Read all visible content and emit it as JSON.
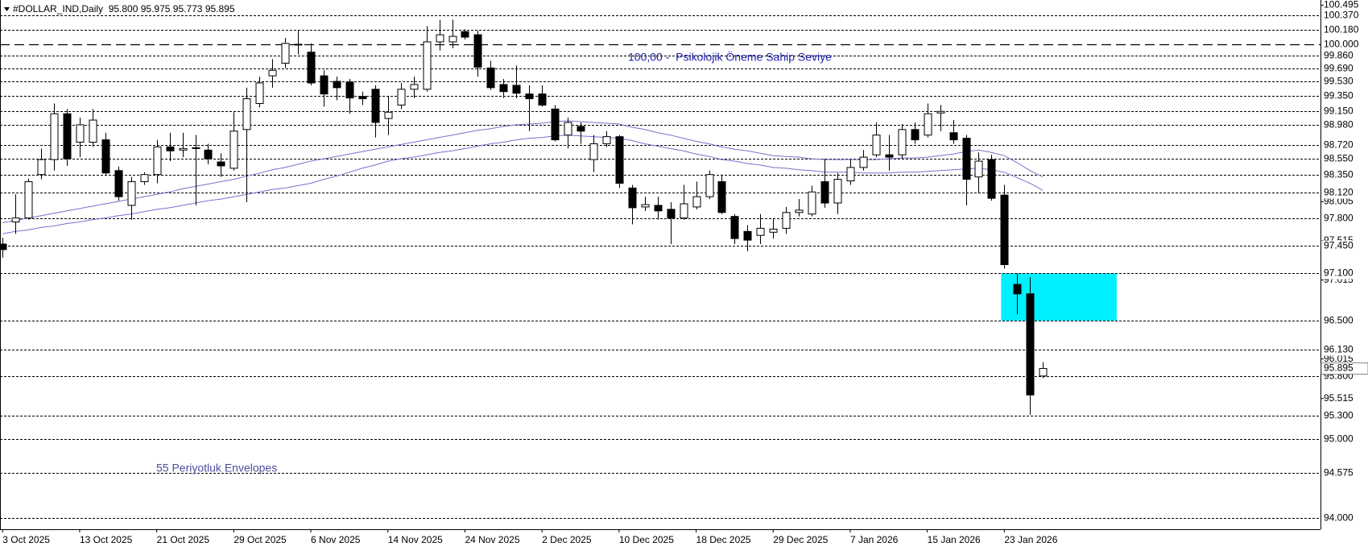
{
  "chart_data": {
    "type": "candlestick",
    "header": "#DOLLAR_IND,Daily  95.800 95.975 95.773 95.895",
    "annotations": [
      "100,00 -  Psikolojik Öneme Sahip Seviye",
      "55 Periyotluk Envelopes"
    ],
    "categories": [
      "3 Oct 2025",
      null,
      null,
      null,
      null,
      null,
      "13 Oct 2025",
      null,
      null,
      null,
      null,
      null,
      "21 Oct 2025",
      null,
      null,
      null,
      null,
      null,
      "29 Oct 2025",
      null,
      null,
      null,
      null,
      null,
      "6 Nov 2025",
      null,
      null,
      null,
      null,
      null,
      "14 Nov 2025",
      null,
      null,
      null,
      null,
      null,
      "24 Nov 2025",
      null,
      null,
      null,
      null,
      null,
      "2 Dec 2025",
      null,
      null,
      null,
      null,
      null,
      "10 Dec 2025",
      null,
      null,
      null,
      null,
      null,
      "18 Dec 2025",
      null,
      null,
      null,
      null,
      null,
      "29 Dec 2025",
      null,
      null,
      null,
      null,
      null,
      "7 Jan 2026",
      null,
      null,
      null,
      null,
      null,
      "15 Jan 2026",
      null,
      null,
      null,
      null,
      null,
      "23 Jan 2026",
      null,
      null,
      null
    ],
    "open": [
      97.47,
      97.75,
      97.8,
      98.35,
      98.54,
      99.12,
      98.76,
      98.76,
      98.79,
      98.4,
      97.96,
      98.26,
      98.35,
      98.7,
      98.66,
      98.68,
      98.66,
      98.51,
      98.43,
      98.92,
      99.25,
      99.6,
      99.76,
      100.0,
      99.9,
      99.6,
      99.53,
      99.52,
      99.34,
      99.43,
      99.06,
      99.23,
      99.43,
      99.43,
      100.03,
      100.03,
      100.16,
      100.12,
      99.7,
      99.49,
      99.48,
      99.37,
      99.37,
      99.18,
      98.85,
      98.96,
      98.54,
      98.74,
      98.83,
      98.18,
      97.94,
      97.96,
      97.91,
      97.8,
      97.94,
      98.07,
      98.26,
      97.82,
      97.63,
      97.58,
      97.62,
      97.67,
      97.87,
      97.85,
      98.26,
      97.99,
      98.27,
      98.44,
      98.6,
      98.6,
      98.6,
      98.92,
      98.85,
      99.13,
      98.88,
      98.81,
      98.32,
      98.54,
      98.09,
      96.96,
      96.84,
      95.8
    ],
    "high": [
      97.55,
      98.1,
      98.3,
      98.68,
      99.25,
      99.18,
      99.07,
      99.18,
      98.88,
      98.45,
      98.32,
      98.38,
      98.79,
      98.88,
      98.88,
      98.85,
      98.74,
      98.62,
      99.14,
      99.45,
      99.59,
      99.81,
      100.08,
      100.17,
      100.01,
      99.67,
      99.59,
      99.56,
      99.4,
      99.48,
      99.34,
      99.51,
      99.59,
      100.23,
      100.31,
      100.31,
      100.19,
      100.17,
      99.79,
      99.56,
      99.73,
      99.48,
      99.48,
      99.23,
      99.07,
      99.01,
      98.85,
      98.9,
      98.85,
      98.22,
      98.07,
      98.07,
      98.0,
      98.22,
      98.26,
      98.4,
      98.35,
      97.85,
      97.71,
      97.85,
      97.8,
      97.94,
      98.04,
      98.21,
      98.55,
      98.37,
      98.54,
      98.66,
      99.01,
      98.85,
      98.99,
      99.01,
      99.25,
      99.23,
      99.04,
      98.85,
      98.63,
      98.6,
      98.22,
      97.1,
      97.05,
      95.975
    ],
    "low": [
      97.3,
      97.6,
      97.78,
      98.29,
      98.4,
      98.46,
      98.57,
      98.7,
      98.35,
      98.02,
      97.78,
      98.22,
      98.24,
      98.52,
      98.57,
      97.96,
      98.48,
      98.32,
      98.4,
      98.0,
      99.2,
      99.45,
      99.7,
      99.87,
      99.48,
      99.21,
      99.29,
      99.12,
      99.23,
      98.82,
      98.85,
      99.18,
      99.32,
      99.4,
      99.92,
      99.95,
      100.06,
      99.59,
      99.42,
      99.32,
      99.32,
      98.9,
      99.21,
      98.77,
      98.68,
      98.74,
      98.38,
      98.7,
      98.18,
      97.72,
      97.89,
      97.78,
      97.47,
      97.78,
      97.91,
      98.04,
      97.85,
      97.47,
      97.38,
      97.47,
      97.54,
      97.6,
      97.82,
      97.82,
      97.93,
      97.85,
      98.22,
      98.4,
      98.57,
      98.4,
      98.55,
      98.74,
      98.82,
      98.9,
      98.74,
      97.96,
      98.11,
      98.02,
      97.16,
      96.58,
      95.31,
      95.773
    ],
    "close": [
      97.4,
      97.8,
      98.26,
      98.54,
      99.12,
      98.55,
      98.98,
      99.04,
      98.37,
      98.07,
      98.26,
      98.35,
      98.7,
      98.65,
      98.68,
      98.69,
      98.55,
      98.46,
      98.9,
      99.31,
      99.51,
      99.67,
      100.01,
      99.99,
      99.51,
      99.37,
      99.45,
      99.32,
      99.31,
      99.01,
      99.14,
      99.43,
      99.49,
      100.03,
      100.12,
      100.1,
      100.09,
      99.71,
      99.45,
      99.4,
      99.38,
      99.31,
      99.23,
      98.79,
      99.01,
      98.9,
      98.74,
      98.83,
      98.24,
      97.93,
      97.97,
      97.89,
      97.8,
      97.98,
      98.07,
      98.35,
      97.87,
      97.54,
      97.52,
      97.67,
      97.66,
      97.87,
      97.9,
      98.13,
      97.99,
      98.29,
      98.44,
      98.57,
      98.85,
      98.57,
      98.92,
      98.79,
      99.12,
      99.15,
      98.79,
      98.29,
      98.52,
      98.05,
      97.21,
      96.84,
      95.56,
      95.895
    ],
    "up_color": "#ffffff",
    "down_color": "#000000",
    "envelopes": {
      "color": "#7b6fd0",
      "upper": [
        97.74,
        97.77,
        97.8,
        97.83,
        97.86,
        97.89,
        97.92,
        97.95,
        97.98,
        98.01,
        98.04,
        98.07,
        98.1,
        98.13,
        98.17,
        98.2,
        98.23,
        98.26,
        98.29,
        98.33,
        98.37,
        98.41,
        98.44,
        98.48,
        98.52,
        98.55,
        98.58,
        98.61,
        98.64,
        98.67,
        98.7,
        98.73,
        98.76,
        98.79,
        98.82,
        98.85,
        98.88,
        98.91,
        98.93,
        98.96,
        98.98,
        98.99,
        99.0,
        99.02,
        99.03,
        99.02,
        99.01,
        99.0,
        98.99,
        98.95,
        98.92,
        98.88,
        98.85,
        98.81,
        98.77,
        98.74,
        98.7,
        98.67,
        98.65,
        98.62,
        98.59,
        98.58,
        98.57,
        98.55,
        98.54,
        98.54,
        98.54,
        98.54,
        98.54,
        98.55,
        98.56,
        98.56,
        98.57,
        98.59,
        98.61,
        98.64,
        98.66,
        98.63,
        98.59,
        98.5,
        98.4,
        98.32
      ],
      "lower": [
        97.6,
        97.63,
        97.65,
        97.68,
        97.7,
        97.73,
        97.75,
        97.78,
        97.8,
        97.83,
        97.85,
        97.88,
        97.91,
        97.93,
        97.96,
        97.99,
        98.02,
        98.04,
        98.07,
        98.1,
        98.13,
        98.16,
        98.18,
        98.21,
        98.24,
        98.29,
        98.33,
        98.38,
        98.43,
        98.47,
        98.52,
        98.55,
        98.57,
        98.6,
        98.63,
        98.65,
        98.68,
        98.71,
        98.74,
        98.76,
        98.79,
        98.81,
        98.82,
        98.84,
        98.85,
        98.84,
        98.83,
        98.82,
        98.81,
        98.78,
        98.74,
        98.71,
        98.68,
        98.65,
        98.61,
        98.58,
        98.54,
        98.52,
        98.49,
        98.47,
        98.44,
        98.43,
        98.41,
        98.4,
        98.38,
        98.38,
        98.38,
        98.37,
        98.37,
        98.37,
        98.38,
        98.38,
        98.39,
        98.4,
        98.41,
        98.42,
        98.43,
        98.41,
        98.38,
        98.31,
        98.24,
        98.15
      ]
    },
    "key_level": {
      "value": 100.0,
      "label": "100.000"
    },
    "levels": [
      {
        "value": 100.37,
        "label": "100.370"
      },
      {
        "value": 100.18,
        "label": "100.180"
      },
      {
        "value": 99.86,
        "label": "99.860"
      },
      {
        "value": 99.69,
        "label": "99.690"
      },
      {
        "value": 99.53,
        "label": "99.530"
      },
      {
        "value": 99.35,
        "label": "99.350"
      },
      {
        "value": 99.15,
        "label": "99.150"
      },
      {
        "value": 98.98,
        "label": "98.980"
      },
      {
        "value": 98.72,
        "label": "98.720"
      },
      {
        "value": 98.55,
        "label": "98.550"
      },
      {
        "value": 98.35,
        "label": "98.350"
      },
      {
        "value": 98.12,
        "label": "98.120"
      },
      {
        "value": 97.8,
        "label": "97.800"
      },
      {
        "value": 97.45,
        "label": "97.450"
      },
      {
        "value": 97.1,
        "label": "97.100"
      },
      {
        "value": 96.5,
        "label": "96.500"
      },
      {
        "value": 96.13,
        "label": "96.130"
      },
      {
        "value": 95.8,
        "label": "95.800"
      },
      {
        "value": 95.3,
        "label": "95.300"
      },
      {
        "value": 95.0,
        "label": "95.000"
      },
      {
        "value": 94.575,
        "label": "94.575"
      },
      {
        "value": 94.0,
        "label": "94.000"
      }
    ],
    "zone_color": "#00f0ff",
    "current_price": {
      "value": 95.895,
      "label": "95.895"
    },
    "ylim": [
      93.86,
      100.56
    ],
    "yticks": [
      {
        "value": 100.495,
        "label": "100.495"
      },
      {
        "value": 98.005,
        "label": "98.005"
      },
      {
        "value": 97.515,
        "label": "97.515"
      },
      {
        "value": 97.015,
        "label": "97.015"
      },
      {
        "value": 96.015,
        "label": "96.015"
      },
      {
        "value": 95.515,
        "label": "95.515"
      }
    ]
  }
}
